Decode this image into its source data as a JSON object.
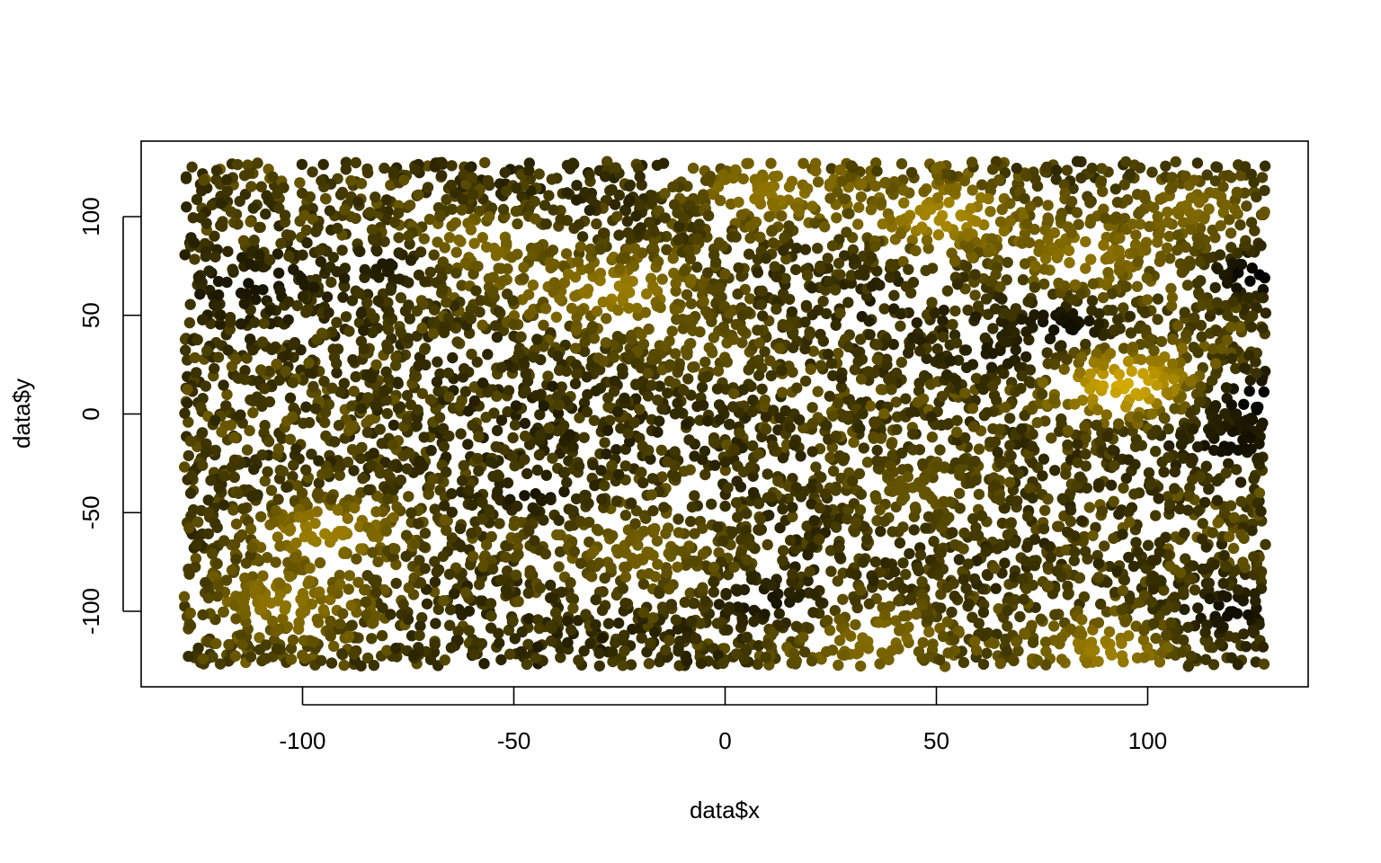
{
  "chart_data": {
    "type": "scatter",
    "title": "",
    "xlabel": "data$x",
    "ylabel": "data$y",
    "xlim": [
      -128,
      128
    ],
    "ylim": [
      -128,
      128
    ],
    "x_ticks": [
      -100,
      -50,
      0,
      50,
      100
    ],
    "x_tick_labels": [
      "-100",
      "-50",
      "0",
      "50",
      "100"
    ],
    "y_ticks": [
      -100,
      -50,
      0,
      50,
      100
    ],
    "y_tick_labels": [
      "-100",
      "-50",
      "0",
      "50",
      "100"
    ],
    "grid": false,
    "legend": "none",
    "point_count_visual": 6000,
    "distribution": "uniform random over x and y in [-128, 128]",
    "color_scale": {
      "description": "points colored on a continuous black-to-gold scale",
      "low": "#000000",
      "mid": "#4a3f00",
      "high": "#d4aa00"
    },
    "bright_clusters": [
      {
        "x": 95,
        "y": 15,
        "level": 1.0
      },
      {
        "x": 52,
        "y": 100,
        "level": 0.85
      },
      {
        "x": -25,
        "y": 62,
        "level": 0.8
      },
      {
        "x": 10,
        "y": 112,
        "level": 0.75
      },
      {
        "x": -95,
        "y": -60,
        "level": 0.8
      },
      {
        "x": -105,
        "y": -95,
        "level": 0.75
      },
      {
        "x": 90,
        "y": -120,
        "level": 0.8
      },
      {
        "x": 85,
        "y": 80,
        "level": 0.75
      },
      {
        "x": -60,
        "y": 85,
        "level": 0.7
      },
      {
        "x": 35,
        "y": -115,
        "level": 0.7
      },
      {
        "x": -20,
        "y": -70,
        "level": 0.65
      },
      {
        "x": 110,
        "y": 105,
        "level": 0.7
      },
      {
        "x": 45,
        "y": -40,
        "level": 0.6
      },
      {
        "x": -5,
        "y": 35,
        "level": 0.6
      }
    ],
    "dark_clusters": [
      {
        "x": 126,
        "y": 70,
        "level": 0.0
      },
      {
        "x": 126,
        "y": 8,
        "level": 0.0
      },
      {
        "x": 120,
        "y": -15,
        "level": 0.1
      },
      {
        "x": 120,
        "y": -100,
        "level": 0.1
      },
      {
        "x": 80,
        "y": 45,
        "level": 0.1
      },
      {
        "x": 10,
        "y": -95,
        "level": 0.15
      },
      {
        "x": -45,
        "y": -40,
        "level": 0.15
      },
      {
        "x": -112,
        "y": 65,
        "level": 0.15
      },
      {
        "x": -80,
        "y": 75,
        "level": 0.2
      },
      {
        "x": 65,
        "y": 30,
        "level": 0.2
      }
    ]
  }
}
